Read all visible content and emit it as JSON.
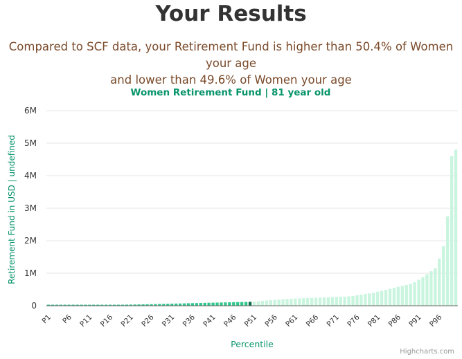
{
  "header": {
    "title": "Your Results",
    "summary_line1": "Compared to SCF data, your Retirement Fund is higher than 50.4% of Women your age",
    "summary_line2": "and lower than 49.6% of Women your age"
  },
  "credits": "Highcharts.com",
  "colors": {
    "below": "#2fc68d",
    "above": "#c9f5df",
    "marker": "#0d6b4a",
    "accent_text": "#08946a"
  },
  "chart_data": {
    "type": "bar",
    "title": "Women Retirement Fund | 81 year old",
    "xlabel": "Percentile",
    "ylabel": "Retirement Fund in USD | undefined",
    "ylim": [
      0,
      6000000
    ],
    "yticks": [
      "0",
      "1M",
      "2M",
      "3M",
      "4M",
      "5M",
      "6M"
    ],
    "grid": true,
    "legend": "none",
    "xtick_labels": [
      "P1",
      "P6",
      "P11",
      "P16",
      "P21",
      "P26",
      "P31",
      "P36",
      "P41",
      "P46",
      "P51",
      "P56",
      "P61",
      "P66",
      "P71",
      "P76",
      "P81",
      "P86",
      "P91",
      "P96"
    ],
    "categories": [
      "P1",
      "P2",
      "P3",
      "P4",
      "P5",
      "P6",
      "P7",
      "P8",
      "P9",
      "P10",
      "P11",
      "P12",
      "P13",
      "P14",
      "P15",
      "P16",
      "P17",
      "P18",
      "P19",
      "P20",
      "P21",
      "P22",
      "P23",
      "P24",
      "P25",
      "P26",
      "P27",
      "P28",
      "P29",
      "P30",
      "P31",
      "P32",
      "P33",
      "P34",
      "P35",
      "P36",
      "P37",
      "P38",
      "P39",
      "P40",
      "P41",
      "P42",
      "P43",
      "P44",
      "P45",
      "P46",
      "P47",
      "P48",
      "P49",
      "P50",
      "P51",
      "P52",
      "P53",
      "P54",
      "P55",
      "P56",
      "P57",
      "P58",
      "P59",
      "P60",
      "P61",
      "P62",
      "P63",
      "P64",
      "P65",
      "P66",
      "P67",
      "P68",
      "P69",
      "P70",
      "P71",
      "P72",
      "P73",
      "P74",
      "P75",
      "P76",
      "P77",
      "P78",
      "P79",
      "P80",
      "P81",
      "P82",
      "P83",
      "P84",
      "P85",
      "P86",
      "P87",
      "P88",
      "P89",
      "P90",
      "P91",
      "P92",
      "P93",
      "P94",
      "P95",
      "P96",
      "P97",
      "P98",
      "P99",
      "P100"
    ],
    "values": [
      0,
      0,
      0,
      2000,
      4000,
      6000,
      8000,
      10000,
      12000,
      14000,
      16000,
      18000,
      20000,
      22000,
      24000,
      26000,
      28000,
      30000,
      32000,
      34000,
      36000,
      38000,
      40000,
      43000,
      46000,
      49000,
      52000,
      55000,
      58000,
      61000,
      64000,
      67000,
      70000,
      73000,
      76000,
      79000,
      82000,
      85000,
      88000,
      91000,
      94000,
      97000,
      100000,
      103000,
      106000,
      109000,
      112000,
      115000,
      118000,
      121000,
      130000,
      140000,
      150000,
      160000,
      170000,
      180000,
      190000,
      200000,
      210000,
      215000,
      220000,
      225000,
      230000,
      235000,
      240000,
      245000,
      250000,
      255000,
      260000,
      265000,
      270000,
      275000,
      280000,
      290000,
      300000,
      320000,
      340000,
      360000,
      380000,
      400000,
      430000,
      460000,
      490000,
      520000,
      550000,
      580000,
      610000,
      640000,
      670000,
      720000,
      800000,
      880000,
      970000,
      1060000,
      1150000,
      1450000,
      1830000,
      2750000,
      4600000,
      4800000
    ],
    "user_percentile": "P50",
    "below_count": 49
  }
}
